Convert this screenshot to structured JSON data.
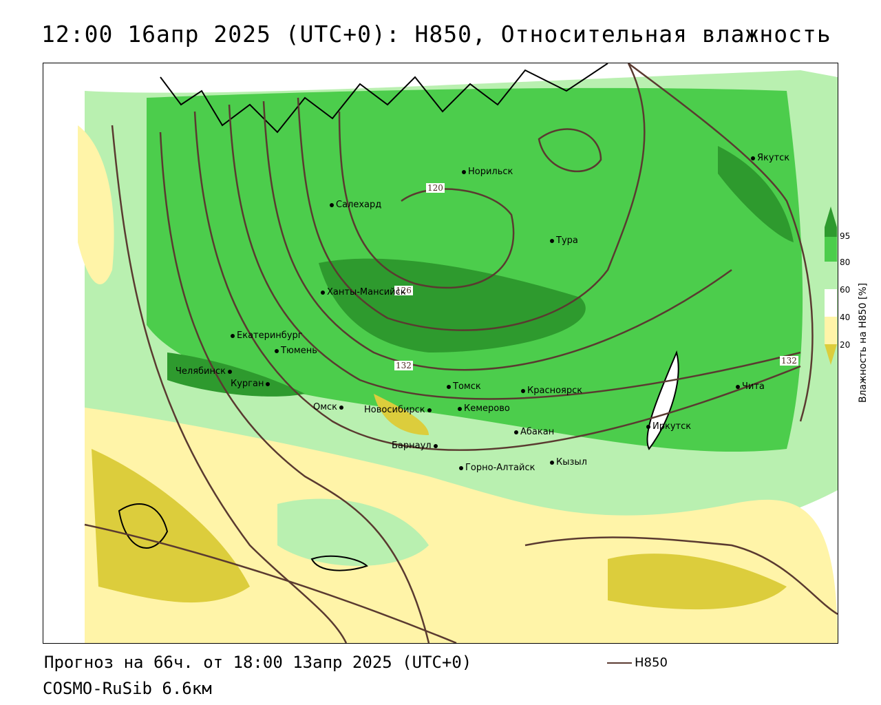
{
  "title": "12:00 16апр 2025 (UTC+0): H850, Относительная влажность",
  "footer": {
    "forecast": "Прогноз на 66ч. от 18:00 13апр 2025 (UTC+0)",
    "model": "COSMO-RuSib 6.6км",
    "contour_legend": "H850"
  },
  "colors": {
    "contour": "#5a3a30",
    "rh_95": "#2e9a2e",
    "rh_80": "#4ccd4c",
    "rh_60": "#b9f0b0",
    "rh_40": "#ffffff",
    "rh_20": "#fff4a8",
    "rh_0": "#dccd3c"
  },
  "legend": {
    "title": "Влажность на H850 [%]",
    "ticks": [
      "95",
      "80",
      "60",
      "40",
      "20"
    ]
  },
  "contour_labels": [
    "120",
    "126",
    "132",
    "132"
  ],
  "cities": [
    {
      "name": "Норильск"
    },
    {
      "name": "Якутск"
    },
    {
      "name": "Салехард"
    },
    {
      "name": "Тура"
    },
    {
      "name": "Ханты-Мансийск"
    },
    {
      "name": "Екатеринбург"
    },
    {
      "name": "Тюмень"
    },
    {
      "name": "Челябинск"
    },
    {
      "name": "Курган"
    },
    {
      "name": "Омск"
    },
    {
      "name": "Томск"
    },
    {
      "name": "Красноярск"
    },
    {
      "name": "Новосибирск"
    },
    {
      "name": "Кемерово"
    },
    {
      "name": "Абакан"
    },
    {
      "name": "Барнаул"
    },
    {
      "name": "Горно-Алтайск"
    },
    {
      "name": "Кызыл"
    },
    {
      "name": "Иркутск"
    },
    {
      "name": "Чита"
    }
  ]
}
